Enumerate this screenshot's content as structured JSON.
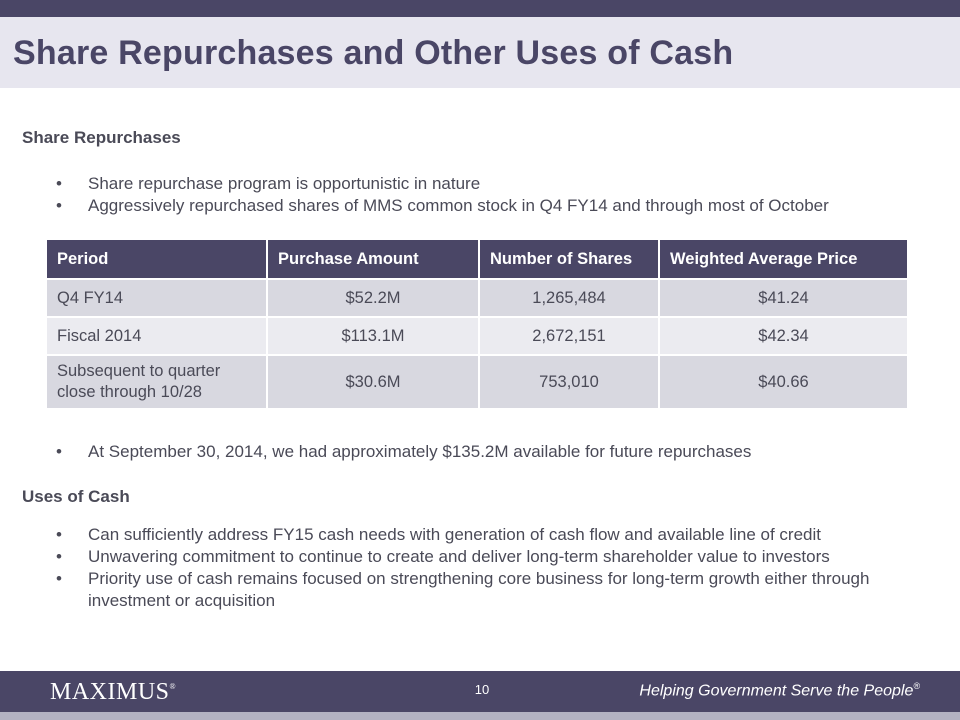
{
  "slide": {
    "title": "Share Repurchases and Other Uses of Cash",
    "page_number": "10"
  },
  "share_repurchases": {
    "heading": "Share Repurchases",
    "bullets": [
      "Share repurchase program is opportunistic in nature",
      "Aggressively repurchased shares of MMS common stock in Q4 FY14 and through most of October"
    ],
    "table": {
      "headers": [
        "Period",
        "Purchase Amount",
        "Number of Shares",
        "Weighted  Average Price"
      ],
      "rows": [
        [
          "Q4 FY14",
          "$52.2M",
          "1,265,484",
          "$41.24"
        ],
        [
          "Fiscal 2014",
          "$113.1M",
          "2,672,151",
          "$42.34"
        ],
        [
          "Subsequent to quarter close through 10/28",
          "$30.6M",
          "753,010",
          "$40.66"
        ]
      ]
    },
    "after_table_bullet": "At September 30, 2014, we had approximately $135.2M available for future repurchases"
  },
  "uses_of_cash": {
    "heading": "Uses of Cash",
    "bullets": [
      "Can sufficiently address FY15 cash needs with generation of cash flow and available line of credit",
      "Unwavering commitment to continue to create and deliver long-term shareholder value to investors",
      "Priority use of cash remains focused on strengthening core business for long-term growth either through investment or acquisition"
    ]
  },
  "footer": {
    "logo_text": "MAXIMUS",
    "logo_mark": "®",
    "tagline": "Helping Government Serve the People",
    "tagline_mark": "®"
  },
  "bullet_glyph": "•",
  "colors": {
    "brand_purple": "#4a4666",
    "title_band": "#e7e6ef",
    "table_row_dark": "#d8d8e0",
    "table_row_light": "#ebebf0",
    "body_text": "#4a4a57"
  }
}
